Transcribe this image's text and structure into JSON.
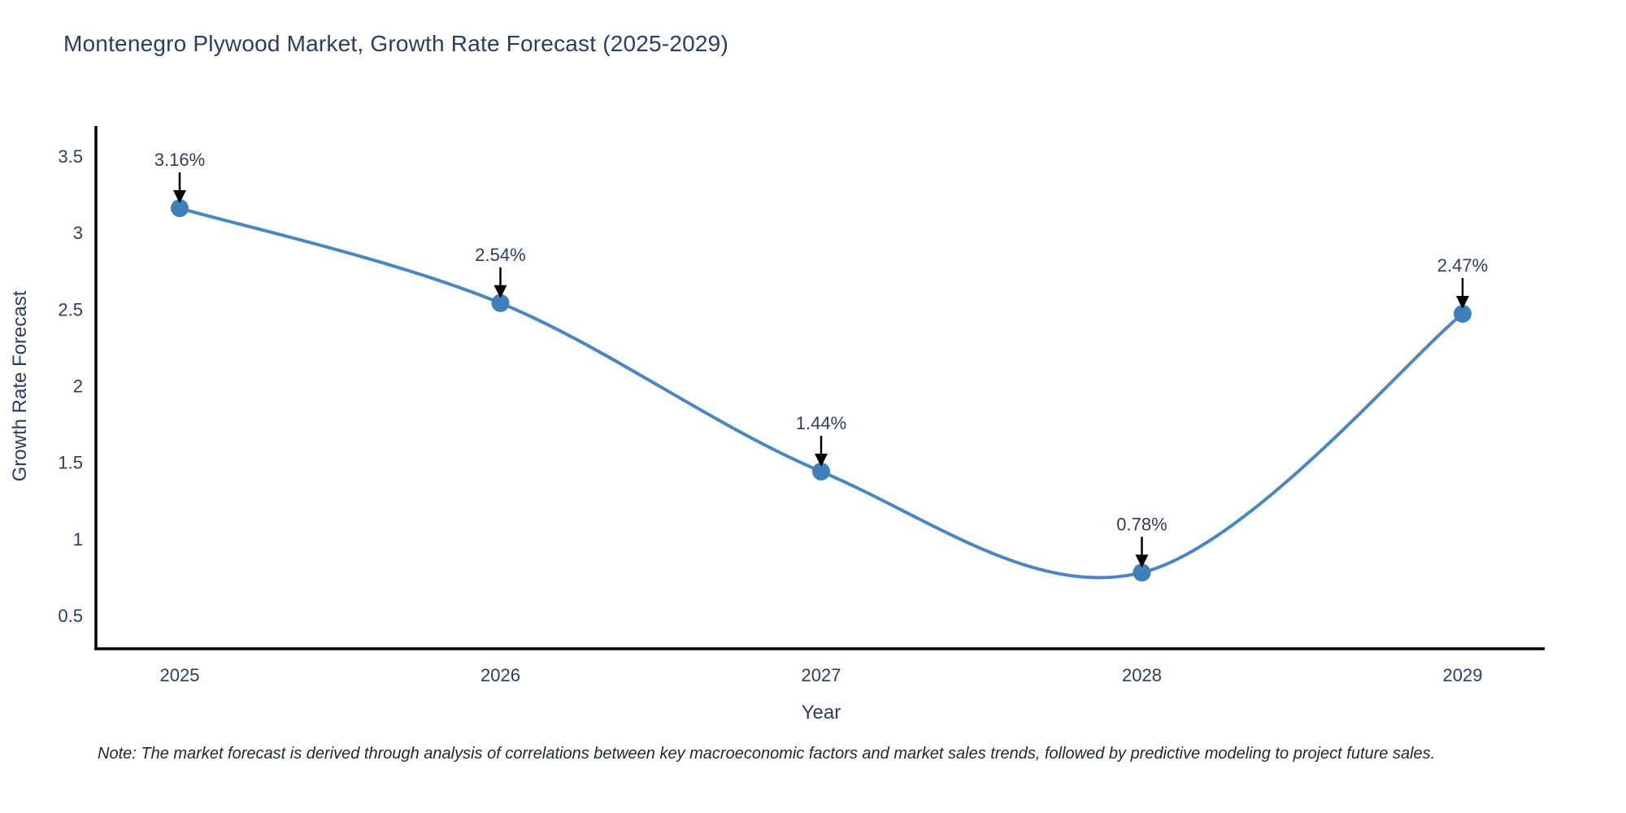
{
  "title": "Montenegro Plywood Market, Growth Rate Forecast (2025-2029)",
  "note": "Note: The market forecast is derived through analysis of correlations between key macroeconomic factors and market sales trends, followed by predictive modeling to project future sales.",
  "chart_data": {
    "type": "line",
    "line_shape": "spline",
    "title": "Montenegro Plywood Market, Growth Rate Forecast (2025-2029)",
    "xlabel": "Year",
    "ylabel": "Growth Rate Forecast",
    "categories": [
      "2025",
      "2026",
      "2027",
      "2028",
      "2029"
    ],
    "series": [
      {
        "name": "Growth Rate Forecast",
        "values": [
          3.16,
          2.54,
          1.44,
          0.78,
          2.47
        ]
      }
    ],
    "point_labels": [
      "3.16%",
      "2.54%",
      "1.44%",
      "0.78%",
      "2.47%"
    ],
    "ytick_labels": [
      "0.5",
      "1",
      "1.5",
      "2",
      "2.5",
      "3",
      "3.5"
    ],
    "ylim": [
      0.5,
      3.5
    ],
    "grid": false,
    "legend": false,
    "annotations_style": "value label with down arrow onto marker",
    "colors": {
      "line": "#4a86c1",
      "marker": "#3f7fba",
      "axis": "#000000",
      "text": "#2a3f5f",
      "annotation_arrow": "#000000",
      "background": "#ffffff"
    }
  }
}
